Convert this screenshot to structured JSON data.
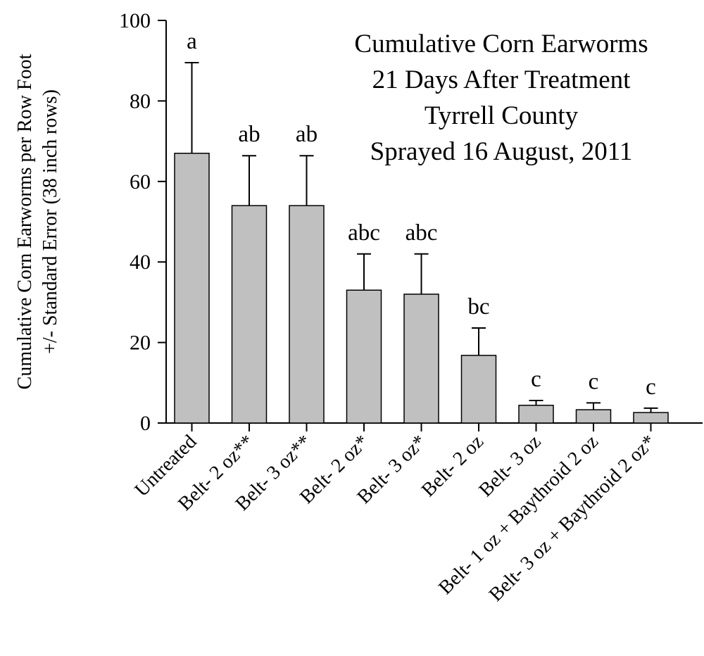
{
  "chart_data": {
    "type": "bar",
    "title": [
      "Cumulative Corn Earworms",
      "21 Days After Treatment",
      "Tyrrell County",
      "Sprayed 16 August, 2011"
    ],
    "ylabel": [
      "Cumulative Corn Earworms per Row Foot",
      "+/- Standard Error (38 inch rows)"
    ],
    "categories": [
      "Untreated",
      "Belt- 2 oz**",
      "Belt- 3 oz**",
      "Belt- 2 oz*",
      "Belt- 3 oz*",
      "Belt- 2 oz",
      "Belt- 3 oz",
      "Belt- 1 oz + Baythroid 2 oz",
      "Belt- 3 oz + Baythroid 2 oz*"
    ],
    "values": [
      67,
      54,
      54,
      33,
      32,
      16.8,
      4.4,
      3.3,
      2.6
    ],
    "errors": [
      22.5,
      12.4,
      12.4,
      9,
      10,
      6.8,
      1.2,
      1.7,
      1.1
    ],
    "letters": [
      "a",
      "ab",
      "ab",
      "abc",
      "abc",
      "bc",
      "c",
      "c",
      "c"
    ],
    "color": "#c0c0c0",
    "ylim": [
      0,
      100
    ],
    "yticks": [
      0,
      20,
      40,
      60,
      80,
      100
    ]
  }
}
